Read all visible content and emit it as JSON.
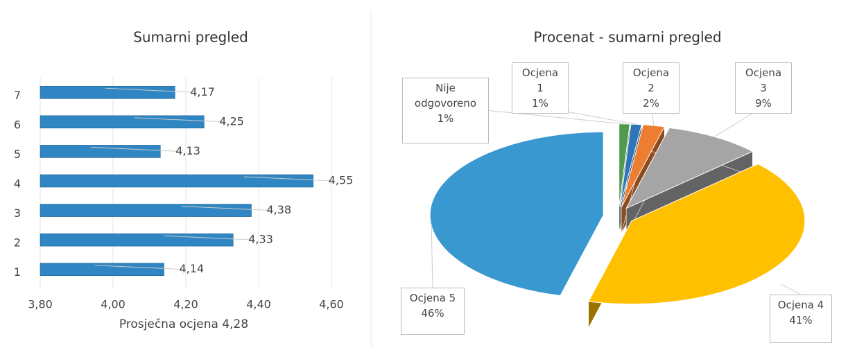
{
  "chart_data": [
    {
      "type": "bar",
      "orientation": "horizontal",
      "title": "Sumarni pregled",
      "categories": [
        "1",
        "2",
        "3",
        "4",
        "5",
        "6",
        "7"
      ],
      "values": [
        4.14,
        4.33,
        4.38,
        4.55,
        4.13,
        4.25,
        4.17
      ],
      "value_labels": [
        "4,14",
        "4,33",
        "4,38",
        "4,55",
        "4,13",
        "4,25",
        "4,17"
      ],
      "color": "#2f86c3",
      "xlim": [
        3.8,
        4.6
      ],
      "xticks": [
        {
          "value": 3.8,
          "label": "3,80"
        },
        {
          "value": 4.0,
          "label": "4,00"
        },
        {
          "value": 4.2,
          "label": "4,20"
        },
        {
          "value": 4.4,
          "label": "4,40"
        },
        {
          "value": 4.6,
          "label": "4,60"
        }
      ],
      "x_label": "Prosječna ocjena 4,28",
      "grid": true
    },
    {
      "type": "pie",
      "title": "Procenat - sumarni pregled",
      "categories": [
        "Nije odgovoreno",
        "Ocjena 1",
        "Ocjena 2",
        "Ocjena 3",
        "Ocjena 4",
        "Ocjena 5"
      ],
      "values": [
        1,
        1,
        2,
        9,
        41,
        46
      ],
      "value_labels": [
        "1%",
        "1%",
        "2%",
        "9%",
        "41%",
        "46%"
      ],
      "colors": [
        "#4e9a4e",
        "#2e75b6",
        "#ed7d31",
        "#a5a5a5",
        "#ffc000",
        "#3a98d0"
      ]
    }
  ]
}
